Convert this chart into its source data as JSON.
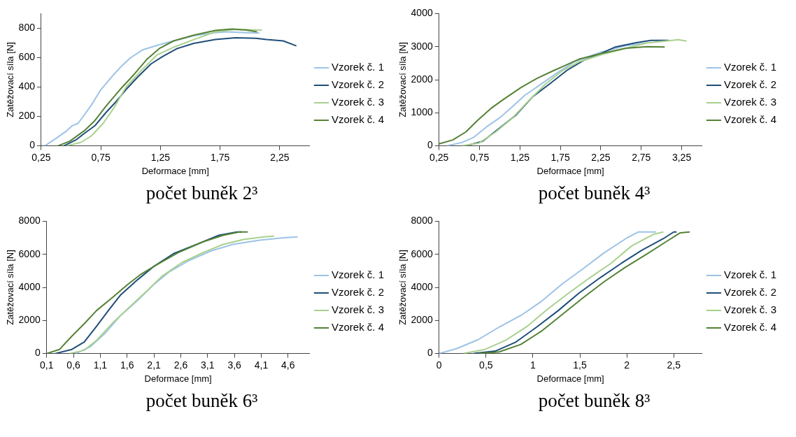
{
  "chart_data": [
    {
      "type": "line",
      "title": "počet buněk 2³",
      "xlabel": "Deformace [mm]",
      "ylabel": "Zatěžovací síla [N]",
      "xlim": [
        0.25,
        2.5
      ],
      "xticks": [
        {
          "value": 0.25,
          "label": "0,25"
        },
        {
          "value": 0.75,
          "label": "0,75"
        },
        {
          "value": 1.25,
          "label": "1,25"
        },
        {
          "value": 1.75,
          "label": "1,75"
        },
        {
          "value": 2.25,
          "label": "2,25"
        }
      ],
      "ylim": [
        0,
        900
      ],
      "yticks": [
        0,
        200,
        400,
        600,
        800
      ],
      "legend": "right",
      "marker": "none",
      "series": [
        {
          "name": "Vzorek č. 1",
          "color": "#9dc3e6",
          "x": [
            0.28,
            0.37,
            0.46,
            0.51,
            0.56,
            0.6,
            0.67,
            0.75,
            0.86,
            0.93,
            1.0,
            1.1,
            1.24,
            1.36,
            1.53,
            1.71,
            1.8,
            1.97,
            2.08
          ],
          "values": [
            0,
            49,
            100,
            137,
            154,
            198,
            277,
            382,
            487,
            548,
            600,
            653,
            688,
            714,
            750,
            770,
            776,
            770,
            767
          ]
        },
        {
          "name": "Vzorek č. 2",
          "color": "#1f4e79",
          "x": [
            0.44,
            0.54,
            0.61,
            0.7,
            0.79,
            0.87,
            0.96,
            1.06,
            1.17,
            1.27,
            1.39,
            1.53,
            1.71,
            1.88,
            2.05,
            2.14,
            2.28,
            2.39
          ],
          "values": [
            0,
            40,
            84,
            137,
            224,
            294,
            382,
            469,
            557,
            609,
            662,
            697,
            723,
            735,
            732,
            723,
            714,
            680
          ]
        },
        {
          "name": "Vzorek č. 3",
          "color": "#a9d18e",
          "x": [
            0.46,
            0.58,
            0.67,
            0.77,
            0.86,
            0.96,
            1.1,
            1.22,
            1.36,
            1.53,
            1.71,
            1.88,
            2.1
          ],
          "values": [
            0,
            23,
            67,
            154,
            259,
            399,
            522,
            618,
            671,
            723,
            776,
            793,
            788
          ]
        },
        {
          "name": "Vzorek č. 4",
          "color": "#548235",
          "x": [
            0.39,
            0.49,
            0.61,
            0.7,
            0.8,
            0.91,
            1.03,
            1.14,
            1.24,
            1.36,
            1.53,
            1.71,
            1.85,
            1.97,
            2.06
          ],
          "values": [
            0,
            32,
            102,
            172,
            277,
            382,
            487,
            592,
            662,
            714,
            753,
            785,
            795,
            788,
            776
          ]
        }
      ]
    },
    {
      "type": "line",
      "title": "počet buněk 4³",
      "xlabel": "Deformace [mm]",
      "ylabel": "Zatěžovací síla [N]",
      "xlim": [
        0.25,
        3.5
      ],
      "xticks": [
        {
          "value": 0.25,
          "label": "0,25"
        },
        {
          "value": 0.75,
          "label": "0,75"
        },
        {
          "value": 1.25,
          "label": "1,25"
        },
        {
          "value": 1.75,
          "label": "1,75"
        },
        {
          "value": 2.25,
          "label": "2,25"
        },
        {
          "value": 2.75,
          "label": "2,75"
        },
        {
          "value": 3.25,
          "label": "3,25"
        }
      ],
      "ylim": [
        0,
        4000
      ],
      "yticks": [
        0,
        1000,
        2000,
        3000,
        4000
      ],
      "legend": "right",
      "marker": "none",
      "series": [
        {
          "name": "Vzorek č. 1",
          "color": "#9dc3e6",
          "x": [
            0.35,
            0.53,
            0.68,
            0.84,
            1.0,
            1.15,
            1.31,
            1.52,
            1.73,
            1.93,
            2.25,
            2.56,
            2.82
          ],
          "values": [
            0,
            100,
            260,
            580,
            850,
            1170,
            1530,
            1880,
            2240,
            2550,
            2830,
            3030,
            3110
          ]
        },
        {
          "name": "Vzorek č. 2",
          "color": "#1f4e79",
          "x": [
            0.58,
            0.79,
            1.0,
            1.2,
            1.41,
            1.62,
            1.83,
            2.04,
            2.25,
            2.43,
            2.69,
            2.87,
            3.09
          ],
          "values": [
            0,
            140,
            540,
            930,
            1490,
            1880,
            2280,
            2590,
            2790,
            2990,
            3120,
            3190,
            3190
          ]
        },
        {
          "name": "Vzorek č. 3",
          "color": "#a9d18e",
          "x": [
            0.53,
            0.74,
            0.95,
            1.16,
            1.36,
            1.57,
            1.78,
            1.99,
            2.25,
            2.56,
            2.82,
            3.13,
            3.21,
            3.31
          ],
          "values": [
            0,
            80,
            420,
            850,
            1370,
            1880,
            2280,
            2550,
            2750,
            2950,
            3110,
            3190,
            3210,
            3170
          ]
        },
        {
          "name": "Vzorek č. 4",
          "color": "#548235",
          "x": [
            0.25,
            0.42,
            0.58,
            0.73,
            0.89,
            1.05,
            1.26,
            1.46,
            1.67,
            1.78,
            1.99,
            2.25,
            2.56,
            2.82,
            3.04
          ],
          "values": [
            60,
            180,
            420,
            780,
            1130,
            1410,
            1760,
            2040,
            2280,
            2400,
            2630,
            2790,
            2950,
            3000,
            2990
          ]
        }
      ]
    },
    {
      "type": "line",
      "title": "počet buněk 6³",
      "xlabel": "Deformace [mm]",
      "ylabel": "Zatěžovací síla [N]",
      "xlim": [
        0.1,
        5.0
      ],
      "xticks": [
        {
          "value": 0.1,
          "label": "0,1"
        },
        {
          "value": 0.6,
          "label": "0,6"
        },
        {
          "value": 1.1,
          "label": "1,1"
        },
        {
          "value": 1.6,
          "label": "1,6"
        },
        {
          "value": 2.1,
          "label": "2,1"
        },
        {
          "value": 2.6,
          "label": "2,6"
        },
        {
          "value": 3.1,
          "label": "3,1"
        },
        {
          "value": 3.6,
          "label": "3,6"
        },
        {
          "value": 4.1,
          "label": "4,1"
        },
        {
          "value": 4.6,
          "label": "4,6"
        }
      ],
      "ylim": [
        0,
        8000
      ],
      "yticks": [
        0,
        2000,
        4000,
        6000,
        8000
      ],
      "legend": "right",
      "marker": "none",
      "series": [
        {
          "name": "Vzorek č. 1",
          "color": "#9dc3e6",
          "x": [
            0.64,
            0.91,
            1.18,
            1.48,
            1.79,
            2.09,
            2.39,
            2.77,
            3.16,
            3.57,
            4.07,
            4.53,
            4.78
          ],
          "values": [
            0,
            400,
            1200,
            2300,
            3200,
            4150,
            4950,
            5650,
            6200,
            6600,
            6850,
            7000,
            7050
          ]
        },
        {
          "name": "Vzorek č. 2",
          "color": "#1f4e79",
          "x": [
            0.26,
            0.57,
            0.8,
            1.03,
            1.25,
            1.48,
            1.79,
            2.09,
            2.47,
            2.93,
            3.31,
            3.65,
            3.74
          ],
          "values": [
            0,
            250,
            700,
            1650,
            2600,
            3550,
            4450,
            5250,
            6050,
            6650,
            7150,
            7350,
            7350
          ]
        },
        {
          "name": "Vzorek č. 3",
          "color": "#a9d18e",
          "x": [
            0.53,
            0.8,
            1.03,
            1.33,
            1.64,
            1.94,
            2.24,
            2.62,
            3.01,
            3.39,
            3.77,
            4.15,
            4.34
          ],
          "values": [
            0,
            200,
            800,
            1850,
            2800,
            3700,
            4650,
            5500,
            6100,
            6600,
            6900,
            7050,
            7100
          ]
        },
        {
          "name": "Vzorek č. 4",
          "color": "#548235",
          "x": [
            0.1,
            0.34,
            0.57,
            0.8,
            1.03,
            1.33,
            1.6,
            1.86,
            2.17,
            2.55,
            3.01,
            3.39,
            3.69,
            3.85
          ],
          "values": [
            0,
            250,
            1050,
            1800,
            2600,
            3400,
            4150,
            4800,
            5400,
            6100,
            6750,
            7150,
            7350,
            7350
          ]
        }
      ]
    },
    {
      "type": "line",
      "title": "počet buněk 8³",
      "xlabel": "Deformace [mm]",
      "ylabel": "Zatěžovací síla [N]",
      "xlim": [
        0,
        2.8
      ],
      "xticks": [
        0,
        {
          "value": 0.5,
          "label": "0,5"
        },
        1,
        {
          "value": 1.5,
          "label": "1,5"
        },
        2,
        {
          "value": 2.5,
          "label": "2,5"
        }
      ],
      "ylim": [
        0,
        8000
      ],
      "yticks": [
        0,
        2000,
        4000,
        6000,
        8000
      ],
      "legend": "right",
      "marker": "none",
      "series": [
        {
          "name": "Vzorek č. 1",
          "color": "#9dc3e6",
          "x": [
            0,
            0.19,
            0.42,
            0.64,
            0.87,
            1.09,
            1.31,
            1.54,
            1.76,
            1.99,
            2.12,
            2.31
          ],
          "values": [
            0,
            300,
            850,
            1600,
            2300,
            3150,
            4200,
            5150,
            6100,
            6950,
            7350,
            7350
          ]
        },
        {
          "name": "Vzorek č. 2",
          "color": "#1f4e79",
          "x": [
            0.37,
            0.6,
            0.82,
            1.04,
            1.27,
            1.49,
            1.72,
            1.94,
            2.16,
            2.39,
            2.5,
            2.53
          ],
          "values": [
            0,
            150,
            700,
            1600,
            2600,
            3650,
            4600,
            5450,
            6250,
            6950,
            7350,
            7350
          ]
        },
        {
          "name": "Vzorek č. 3",
          "color": "#a9d18e",
          "x": [
            0.26,
            0.49,
            0.71,
            0.94,
            1.16,
            1.38,
            1.61,
            1.83,
            2.05,
            2.28,
            2.39
          ],
          "values": [
            0,
            250,
            800,
            1650,
            2700,
            3650,
            4600,
            5450,
            6500,
            7200,
            7350
          ]
        },
        {
          "name": "Vzorek č. 4",
          "color": "#548235",
          "x": [
            0.42,
            0.64,
            0.87,
            1.09,
            1.31,
            1.54,
            1.76,
            1.98,
            2.21,
            2.43,
            2.57,
            2.67
          ],
          "values": [
            0,
            100,
            550,
            1350,
            2350,
            3400,
            4350,
            5200,
            6000,
            6800,
            7300,
            7350
          ]
        }
      ]
    }
  ]
}
